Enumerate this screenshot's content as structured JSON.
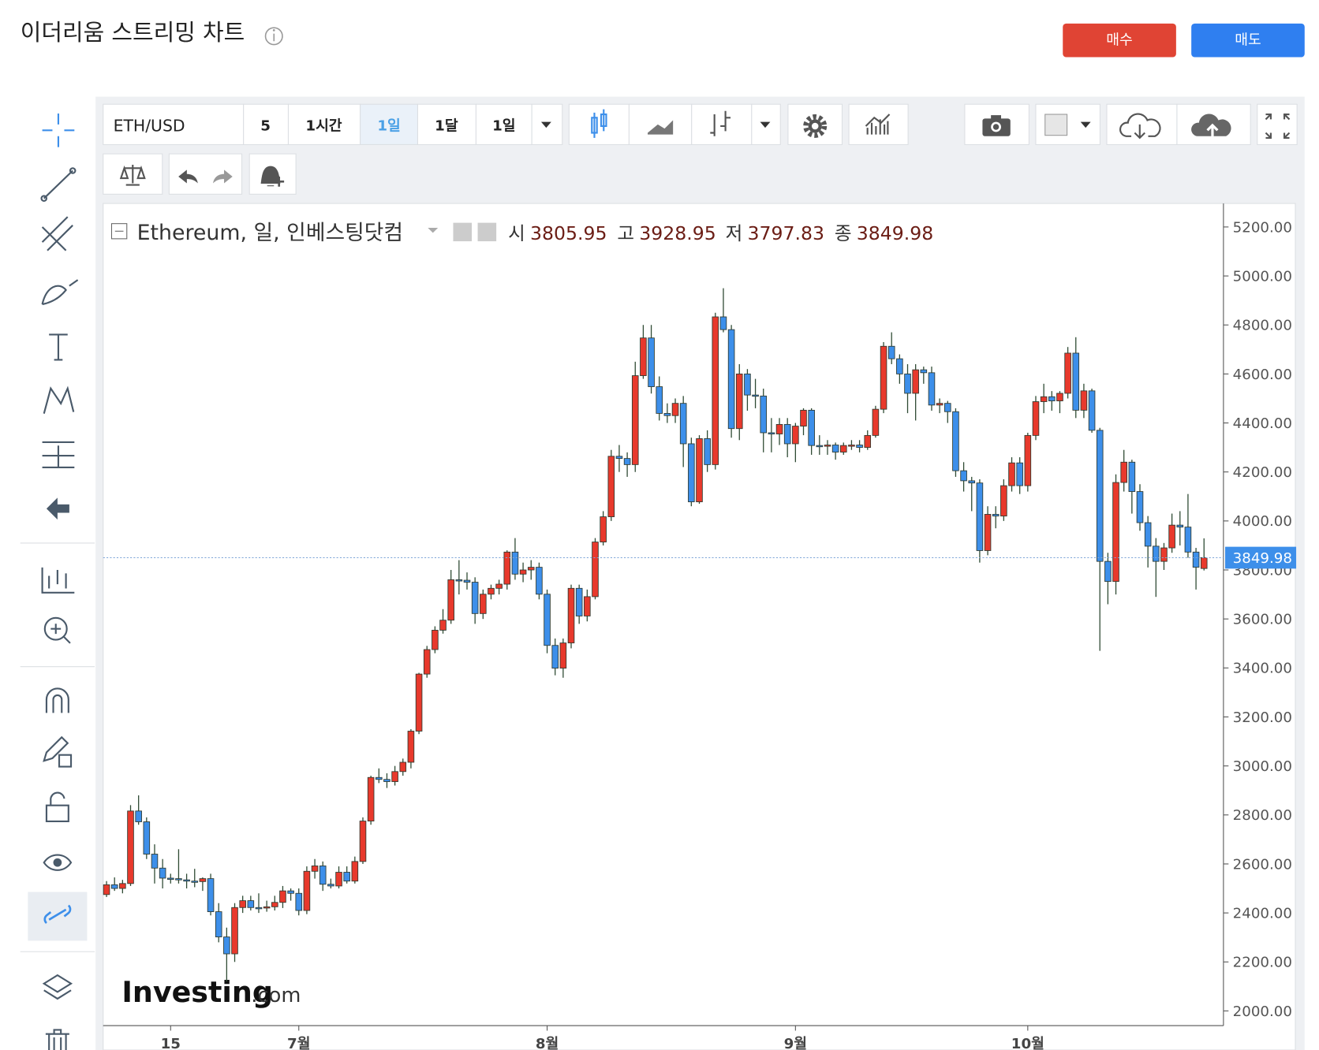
{
  "header": {
    "title": "이더리움 스트리밍 차트",
    "buy": "매수",
    "sell": "매도"
  },
  "toolbar": {
    "symbol": "ETH/USD",
    "intervals": [
      "5",
      "1시간",
      "1일",
      "1달",
      "1일"
    ]
  },
  "chart_data": {
    "type": "candlestick",
    "title": "Ethereum, 일, 인베스팅닷컴",
    "ohlc_labels": [
      "시",
      "고",
      "저",
      "종"
    ],
    "open": [
      2475,
      2515,
      2500,
      2520,
      2816,
      2772,
      2640,
      2583,
      2542,
      2540,
      2535,
      2530,
      2528,
      2540,
      2405,
      2302,
      2233,
      2422,
      2450,
      2422,
      2420,
      2425,
      2443,
      2490,
      2480,
      2410,
      2570,
      2592,
      2517,
      2510,
      2566,
      2530,
      2610,
      2775,
      2953,
      2945,
      2936,
      2977,
      3015,
      3142,
      3375,
      3475,
      3554,
      3595,
      3760,
      3758,
      3750,
      3622,
      3701,
      3725,
      3742,
      3873,
      3783,
      3800,
      3811,
      3701,
      3492,
      3399,
      3502,
      3725,
      3612,
      3691,
      3914,
      4017,
      4264,
      4255,
      4230,
      4593,
      4747,
      4548,
      4439,
      4430,
      4480,
      4315,
      4078,
      4336,
      4230,
      4833,
      4781,
      4377,
      4600,
      4514,
      4510,
      4360,
      4355,
      4394,
      4315,
      4387,
      4452,
      4308,
      4305,
      4310,
      4281,
      4308,
      4310,
      4300,
      4349,
      4456,
      4713,
      4662,
      4600,
      4521,
      4617,
      4605,
      4473,
      4480,
      4446,
      4205,
      4164,
      4155,
      3879,
      4027,
      4020,
      4144,
      4237,
      4144,
      4349,
      4487,
      4507,
      4490,
      4521,
      4685,
      4452,
      4531,
      4370,
      3835,
      3753,
      4157,
      4240,
      4120,
      3993,
      3897,
      3835,
      3890,
      3983,
      3975,
      3873,
      3805.95
    ],
    "high": [
      2530,
      2545,
      2535,
      2840,
      2880,
      2790,
      2680,
      2620,
      2560,
      2660,
      2560,
      2580,
      2545,
      2560,
      2440,
      2340,
      2440,
      2470,
      2470,
      2480,
      2450,
      2470,
      2510,
      2500,
      2500,
      2590,
      2620,
      2610,
      2540,
      2590,
      2590,
      2630,
      2790,
      2960,
      2990,
      2970,
      3000,
      3030,
      3150,
      3380,
      3490,
      3570,
      3640,
      3800,
      3840,
      3790,
      3770,
      3720,
      3740,
      3760,
      3880,
      3930,
      3830,
      3840,
      3830,
      3720,
      3520,
      3520,
      3740,
      3740,
      3720,
      3930,
      4040,
      4290,
      4310,
      4280,
      4650,
      4800,
      4800,
      4590,
      4480,
      4500,
      4510,
      4340,
      4350,
      4370,
      4850,
      4950,
      4800,
      4640,
      4620,
      4580,
      4540,
      4420,
      4420,
      4420,
      4400,
      4460,
      4460,
      4350,
      4330,
      4320,
      4320,
      4330,
      4330,
      4370,
      4470,
      4730,
      4770,
      4680,
      4640,
      4640,
      4630,
      4630,
      4500,
      4490,
      4460,
      4240,
      4180,
      4170,
      4060,
      4060,
      4170,
      4260,
      4260,
      4360,
      4510,
      4560,
      4530,
      4530,
      4710,
      4750,
      4560,
      4540,
      4380,
      3870,
      4190,
      4290,
      4250,
      4150,
      4020,
      3930,
      3910,
      4030,
      4040,
      4110,
      3890,
      3928.95
    ],
    "low": [
      2465,
      2490,
      2480,
      2510,
      2760,
      2620,
      2520,
      2500,
      2520,
      2520,
      2500,
      2505,
      2490,
      2390,
      2280,
      2120,
      2200,
      2400,
      2410,
      2400,
      2405,
      2410,
      2420,
      2450,
      2390,
      2395,
      2540,
      2490,
      2500,
      2500,
      2520,
      2520,
      2600,
      2760,
      2930,
      2910,
      2920,
      2960,
      2990,
      3130,
      3360,
      3460,
      3540,
      3580,
      3700,
      3720,
      3580,
      3600,
      3680,
      3700,
      3720,
      3760,
      3750,
      3760,
      3680,
      3460,
      3370,
      3360,
      3480,
      3580,
      3590,
      3680,
      3900,
      4000,
      4200,
      4180,
      4200,
      4580,
      4520,
      4410,
      4400,
      4400,
      4220,
      4060,
      4070,
      4200,
      4210,
      4770,
      4340,
      4330,
      4450,
      4460,
      4280,
      4280,
      4310,
      4260,
      4240,
      4350,
      4270,
      4270,
      4270,
      4250,
      4270,
      4290,
      4280,
      4290,
      4340,
      4440,
      4640,
      4560,
      4440,
      4410,
      4560,
      4450,
      4440,
      4400,
      4180,
      4120,
      4040,
      3830,
      3860,
      3970,
      4000,
      4120,
      4110,
      4120,
      4330,
      4440,
      4450,
      4440,
      4500,
      4420,
      4420,
      4360,
      3470,
      3660,
      3700,
      4120,
      4030,
      3960,
      3810,
      3690,
      3800,
      3870,
      3900,
      3850,
      3720,
      3797.83
    ],
    "close": [
      2515,
      2500,
      2520,
      2816,
      2772,
      2640,
      2583,
      2542,
      2540,
      2535,
      2530,
      2528,
      2540,
      2405,
      2302,
      2233,
      2422,
      2450,
      2422,
      2420,
      2425,
      2443,
      2490,
      2480,
      2410,
      2570,
      2592,
      2517,
      2510,
      2566,
      2530,
      2610,
      2775,
      2953,
      2945,
      2936,
      2977,
      3015,
      3142,
      3375,
      3475,
      3554,
      3595,
      3760,
      3758,
      3750,
      3622,
      3701,
      3725,
      3742,
      3873,
      3783,
      3800,
      3811,
      3701,
      3492,
      3399,
      3502,
      3725,
      3612,
      3691,
      3914,
      4017,
      4264,
      4255,
      4230,
      4593,
      4747,
      4548,
      4439,
      4430,
      4480,
      4315,
      4078,
      4336,
      4230,
      4833,
      4781,
      4377,
      4600,
      4514,
      4510,
      4360,
      4355,
      4394,
      4315,
      4387,
      4452,
      4308,
      4305,
      4310,
      4281,
      4308,
      4310,
      4300,
      4349,
      4456,
      4713,
      4662,
      4600,
      4521,
      4617,
      4605,
      4473,
      4480,
      4446,
      4205,
      4164,
      4155,
      3879,
      4027,
      4020,
      4144,
      4237,
      4144,
      4349,
      4487,
      4507,
      4490,
      4521,
      4685,
      4452,
      4531,
      4370,
      3835,
      3753,
      4157,
      4240,
      4120,
      3993,
      3897,
      3835,
      3890,
      3983,
      3975,
      3873,
      3811,
      3849.98
    ],
    "up_color": "#e8392c",
    "down_color": "#3d8fea",
    "xticks": [
      {
        "value": 8,
        "label": "15"
      },
      {
        "value": 24,
        "label": "7월"
      },
      {
        "value": 55,
        "label": "8월"
      },
      {
        "value": 86,
        "label": "9월"
      },
      {
        "value": 115,
        "label": "10월"
      }
    ],
    "ylim": [
      1940,
      5296
    ],
    "yticks": [
      {
        "value": 2000,
        "label": "2000.00"
      },
      {
        "value": 2200,
        "label": "2200.00"
      },
      {
        "value": 2400,
        "label": "2400.00"
      },
      {
        "value": 2600,
        "label": "2600.00"
      },
      {
        "value": 2800,
        "label": "2800.00"
      },
      {
        "value": 3000,
        "label": "3000.00"
      },
      {
        "value": 3200,
        "label": "3200.00"
      },
      {
        "value": 3400,
        "label": "3400.00"
      },
      {
        "value": 3600,
        "label": "3600.00"
      },
      {
        "value": 3800,
        "label": "3800.00"
      },
      {
        "value": 4000,
        "label": "4000.00"
      },
      {
        "value": 4200,
        "label": "4200.00"
      },
      {
        "value": 4400,
        "label": "4400.00"
      },
      {
        "value": 4600,
        "label": "4600.00"
      },
      {
        "value": 4800,
        "label": "4800.00"
      },
      {
        "value": 5000,
        "label": "5000.00"
      },
      {
        "value": 5200,
        "label": "5200.00"
      }
    ],
    "last_price_line": true
  },
  "watermark": {
    "brand": "Investing",
    "suffix": ".com"
  }
}
